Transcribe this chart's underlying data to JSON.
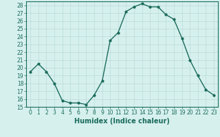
{
  "x": [
    0,
    1,
    2,
    3,
    4,
    5,
    6,
    7,
    8,
    9,
    10,
    11,
    12,
    13,
    14,
    15,
    16,
    17,
    18,
    19,
    20,
    21,
    22,
    23
  ],
  "y": [
    19.5,
    20.5,
    19.5,
    18.0,
    15.8,
    15.5,
    15.5,
    15.3,
    16.5,
    18.3,
    23.5,
    24.5,
    27.2,
    27.8,
    28.2,
    27.8,
    27.8,
    26.8,
    26.2,
    23.8,
    21.0,
    19.0,
    17.2,
    16.5
  ],
  "line_color": "#1a6b5a",
  "marker": "o",
  "marker_size": 2.0,
  "bg_color": "#d6f0ee",
  "grid_color": "#b8dbd8",
  "xlabel": "Humidex (Indice chaleur)",
  "ylim": [
    15,
    28.5
  ],
  "xlim": [
    -0.5,
    23.5
  ],
  "yticks": [
    15,
    16,
    17,
    18,
    19,
    20,
    21,
    22,
    23,
    24,
    25,
    26,
    27,
    28
  ],
  "xticks": [
    0,
    1,
    2,
    3,
    4,
    5,
    6,
    7,
    8,
    9,
    10,
    11,
    12,
    13,
    14,
    15,
    16,
    17,
    18,
    19,
    20,
    21,
    22,
    23
  ],
  "tick_fontsize": 5.5,
  "xlabel_fontsize": 7.0,
  "line_width": 1.0
}
